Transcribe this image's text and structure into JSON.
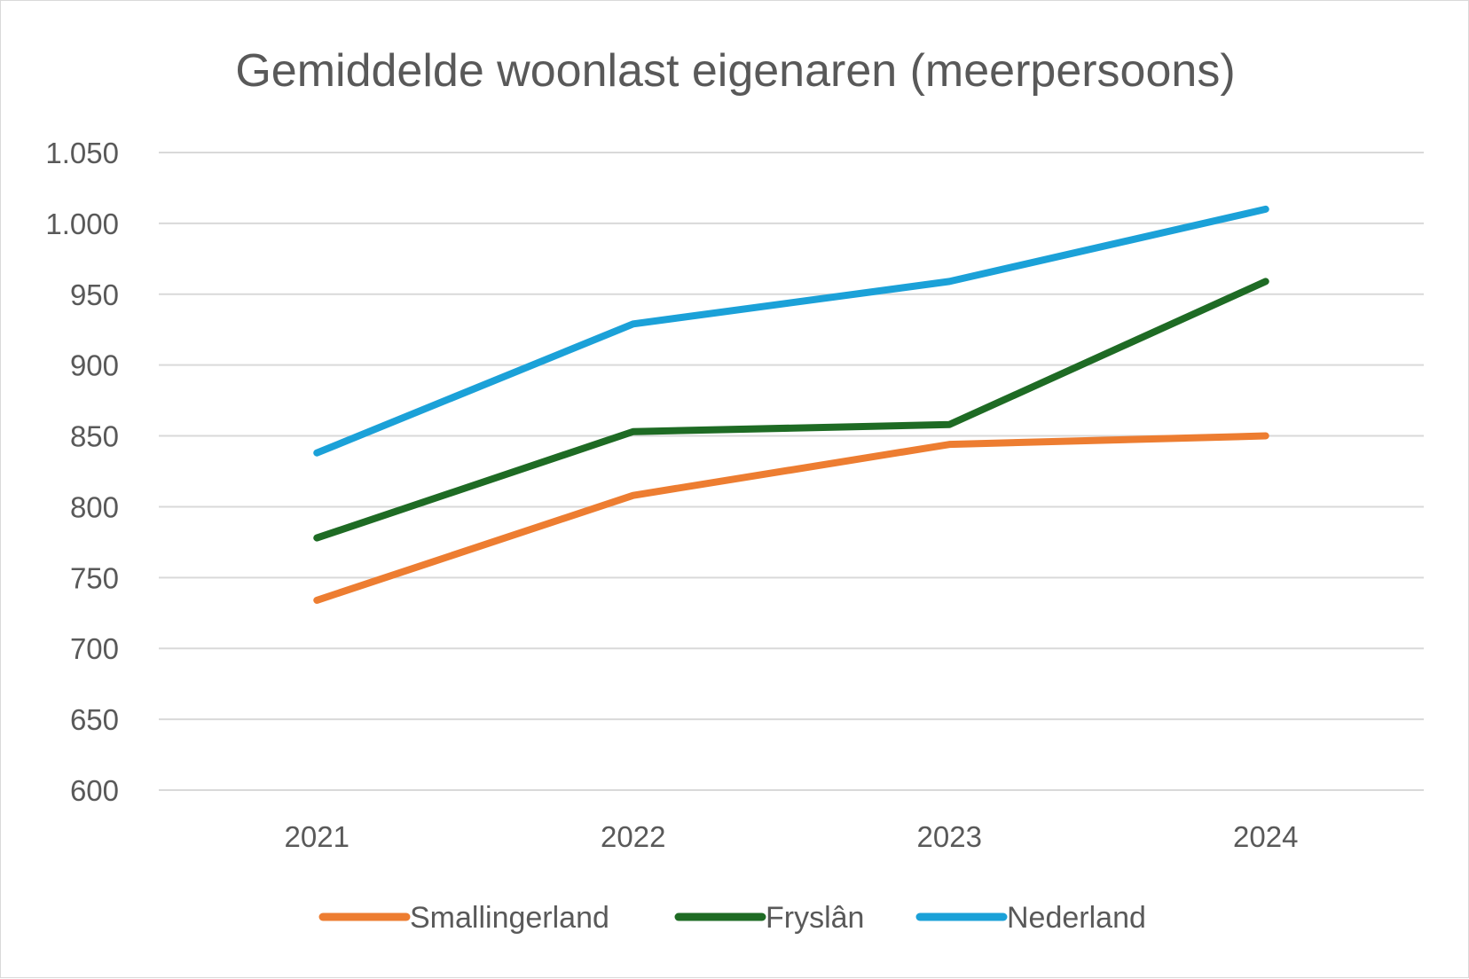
{
  "chart_data": {
    "type": "line",
    "title": "Gemiddelde woonlast eigenaren (meerpersoons)",
    "xlabel": "",
    "ylabel": "",
    "categories": [
      "2021",
      "2022",
      "2023",
      "2024"
    ],
    "ylim": [
      600,
      1050
    ],
    "yticks": [
      600,
      650,
      700,
      750,
      800,
      850,
      900,
      950,
      1000,
      1050
    ],
    "ytick_labels": [
      "600",
      "650",
      "700",
      "750",
      "800",
      "850",
      "900",
      "950",
      "1.000",
      "1.050"
    ],
    "grid": true,
    "legend_position": "bottom",
    "series": [
      {
        "name": "Smallingerland",
        "color": "#ed7d31",
        "values": [
          734,
          808,
          844,
          850
        ]
      },
      {
        "name": "Fryslân",
        "color": "#1e6b24",
        "values": [
          778,
          853,
          858,
          959
        ]
      },
      {
        "name": "Nederland",
        "color": "#1ba1d8",
        "values": [
          838,
          929,
          959,
          1010
        ]
      }
    ]
  }
}
